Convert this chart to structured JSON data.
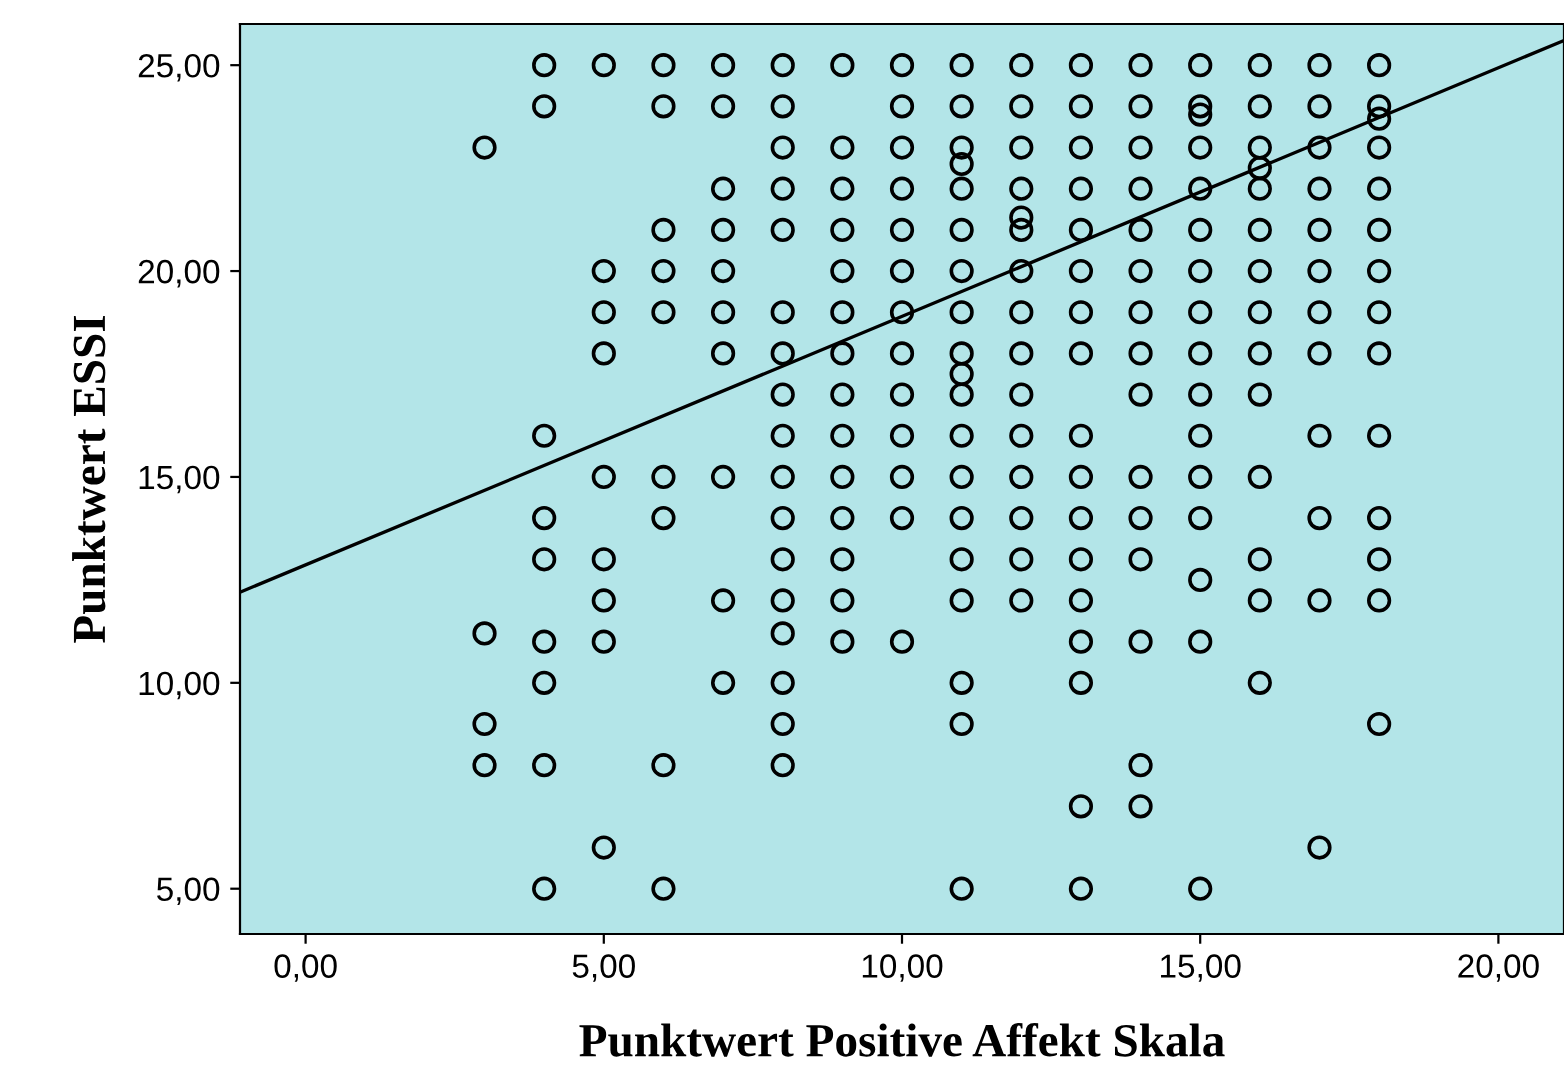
{
  "chart_data": {
    "type": "scatter",
    "xlabel": "Punktwert Positive Affekt Skala",
    "ylabel": "Punktwert ESSI",
    "xlim": [
      -1.1,
      21.1
    ],
    "ylim": [
      3.9,
      26.0
    ],
    "xticks": [
      {
        "value": 0,
        "label": "0,00"
      },
      {
        "value": 5,
        "label": "5,00"
      },
      {
        "value": 10,
        "label": "10,00"
      },
      {
        "value": 15,
        "label": "15,00"
      },
      {
        "value": 20,
        "label": "20,00"
      }
    ],
    "yticks": [
      {
        "value": 5,
        "label": "5,00"
      },
      {
        "value": 10,
        "label": "10,00"
      },
      {
        "value": 15,
        "label": "15,00"
      },
      {
        "value": 20,
        "label": "20,00"
      },
      {
        "value": 25,
        "label": "25,00"
      }
    ],
    "marker": "circle",
    "grid": false,
    "series": [
      {
        "color": "#000000",
        "x": [
          4,
          5,
          6,
          7,
          8,
          9,
          10,
          11,
          12,
          13,
          14,
          15,
          16,
          17,
          18
        ],
        "values": [
          25,
          25,
          25,
          25,
          25,
          25,
          25,
          25,
          25,
          25,
          25,
          25,
          25,
          25,
          25
        ]
      },
      {
        "color": "#000000",
        "x": [
          4,
          6,
          7,
          8,
          10,
          11,
          12,
          13,
          14,
          15,
          16,
          17,
          18,
          15,
          18
        ],
        "values": [
          24,
          24,
          24,
          24,
          24,
          24,
          24,
          24,
          24,
          24,
          24,
          24,
          24,
          23.8,
          23.7
        ]
      },
      {
        "color": "#000000",
        "x": [
          3,
          8,
          9,
          10,
          11,
          12,
          13,
          14,
          15,
          16,
          17,
          18,
          11,
          16
        ],
        "values": [
          23,
          23,
          23,
          23,
          23,
          23,
          23,
          23,
          23,
          23,
          23,
          23,
          22.6,
          22.5
        ]
      },
      {
        "color": "#000000",
        "x": [
          7,
          8,
          9,
          10,
          11,
          12,
          13,
          14,
          15,
          16,
          17,
          18,
          12
        ],
        "values": [
          22,
          22,
          22,
          22,
          22,
          22,
          22,
          22,
          22,
          22,
          22,
          22,
          21.3
        ]
      },
      {
        "color": "#000000",
        "x": [
          6,
          7,
          8,
          9,
          10,
          11,
          12,
          13,
          14,
          15,
          16,
          17,
          18
        ],
        "values": [
          21,
          21,
          21,
          21,
          21,
          21,
          21,
          21,
          21,
          21,
          21,
          21,
          21
        ]
      },
      {
        "color": "#000000",
        "x": [
          5,
          6,
          7,
          9,
          10,
          11,
          12,
          13,
          14,
          15,
          16,
          17,
          18
        ],
        "values": [
          20,
          20,
          20,
          20,
          20,
          20,
          20,
          20,
          20,
          20,
          20,
          20,
          20
        ]
      },
      {
        "color": "#000000",
        "x": [
          5,
          6,
          7,
          8,
          9,
          10,
          11,
          12,
          13,
          14,
          15,
          16,
          17,
          18
        ],
        "values": [
          19,
          19,
          19,
          19,
          19,
          19,
          19,
          19,
          19,
          19,
          19,
          19,
          19,
          19
        ]
      },
      {
        "color": "#000000",
        "x": [
          5,
          7,
          8,
          9,
          10,
          11,
          12,
          13,
          14,
          15,
          16,
          17,
          18,
          11
        ],
        "values": [
          18,
          18,
          18,
          18,
          18,
          18,
          18,
          18,
          18,
          18,
          18,
          18,
          18,
          17.5
        ]
      },
      {
        "color": "#000000",
        "x": [
          8,
          9,
          10,
          11,
          12,
          14,
          15,
          16
        ],
        "values": [
          17,
          17,
          17,
          17,
          17,
          17,
          17,
          17
        ]
      },
      {
        "color": "#000000",
        "x": [
          4,
          8,
          9,
          10,
          11,
          12,
          13,
          15,
          17,
          18
        ],
        "values": [
          16,
          16,
          16,
          16,
          16,
          16,
          16,
          16,
          16,
          16
        ]
      },
      {
        "color": "#000000",
        "x": [
          5,
          6,
          7,
          8,
          9,
          10,
          11,
          12,
          13,
          14,
          15,
          16
        ],
        "values": [
          15,
          15,
          15,
          15,
          15,
          15,
          15,
          15,
          15,
          15,
          15,
          15
        ]
      },
      {
        "color": "#000000",
        "x": [
          4,
          6,
          8,
          9,
          10,
          11,
          12,
          13,
          14,
          15,
          17,
          18
        ],
        "values": [
          14,
          14,
          14,
          14,
          14,
          14,
          14,
          14,
          14,
          14,
          14,
          14
        ]
      },
      {
        "color": "#000000",
        "x": [
          4,
          5,
          8,
          9,
          11,
          12,
          13,
          14,
          16,
          18,
          15
        ],
        "values": [
          13,
          13,
          13,
          13,
          13,
          13,
          13,
          13,
          13,
          13,
          12.5
        ]
      },
      {
        "color": "#000000",
        "x": [
          5,
          7,
          8,
          9,
          11,
          12,
          13,
          16,
          17,
          18
        ],
        "values": [
          12,
          12,
          12,
          12,
          12,
          12,
          12,
          12,
          12,
          12
        ]
      },
      {
        "color": "#000000",
        "x": [
          3,
          8,
          4,
          5,
          9,
          10,
          13,
          14,
          15
        ],
        "values": [
          11.2,
          11.2,
          11,
          11,
          11,
          11,
          11,
          11,
          11
        ]
      },
      {
        "color": "#000000",
        "x": [
          4,
          7,
          8,
          11,
          13,
          16
        ],
        "values": [
          10,
          10,
          10,
          10,
          10,
          10
        ]
      },
      {
        "color": "#000000",
        "x": [
          3,
          8,
          11,
          18
        ],
        "values": [
          9,
          9,
          9,
          9
        ]
      },
      {
        "color": "#000000",
        "x": [
          3,
          4,
          6,
          8,
          14,
          13,
          14
        ],
        "values": [
          8,
          8,
          8,
          8,
          8,
          7,
          7
        ]
      },
      {
        "color": "#000000",
        "x": [
          5,
          17,
          4,
          6,
          11,
          13,
          15
        ],
        "values": [
          6,
          6,
          5,
          5,
          5,
          5,
          5
        ]
      },
      {
        "type": "line",
        "marker": "none",
        "color": "#000000",
        "x": [
          -1.1,
          21.1
        ],
        "values": [
          12.2,
          25.6
        ]
      }
    ]
  }
}
